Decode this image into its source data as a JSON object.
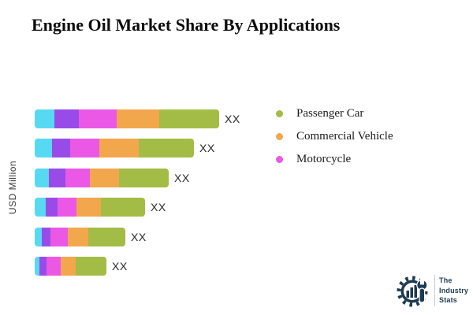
{
  "title": "Engine Oil Market Share By Applications",
  "chart_data": {
    "type": "bar",
    "orientation": "horizontal",
    "stacked": true,
    "title": "Engine Oil Market Share By Applications",
    "ylabel": "USD Million",
    "bar_value_labels": [
      "XX",
      "XX",
      "XX",
      "XX",
      "XX",
      "XX"
    ],
    "series": [
      {
        "key": "segment-cyan",
        "name": "",
        "color": "#58D9F2",
        "values": [
          25,
          22,
          18,
          14,
          9,
          6
        ]
      },
      {
        "key": "segment-purple",
        "name": "",
        "color": "#994BE8",
        "values": [
          31,
          23,
          21,
          15,
          11,
          9
        ]
      },
      {
        "key": "motorcycle",
        "name": "Motorcycle",
        "color": "#EA58E5",
        "values": [
          48,
          37,
          31,
          24,
          22,
          18
        ]
      },
      {
        "key": "commercial-vehicle",
        "name": "Commercial Vehicle",
        "color": "#F2A74D",
        "values": [
          54,
          50,
          37,
          31,
          26,
          19
        ]
      },
      {
        "key": "passenger-car",
        "name": "Passenger Car",
        "color": "#A3BC45",
        "values": [
          76,
          70,
          63,
          56,
          47,
          39
        ]
      }
    ],
    "legend": [
      {
        "label": "Passenger Car",
        "color": "#A3BC45"
      },
      {
        "label": "Commercial Vehicle",
        "color": "#F2A74D"
      },
      {
        "label": "Motorcycle",
        "color": "#EA58E5"
      }
    ],
    "legend_position": "right",
    "grid": false
  },
  "logo": {
    "lines": [
      "The",
      "Industry",
      "Stats"
    ],
    "color": "#1C3A52"
  }
}
